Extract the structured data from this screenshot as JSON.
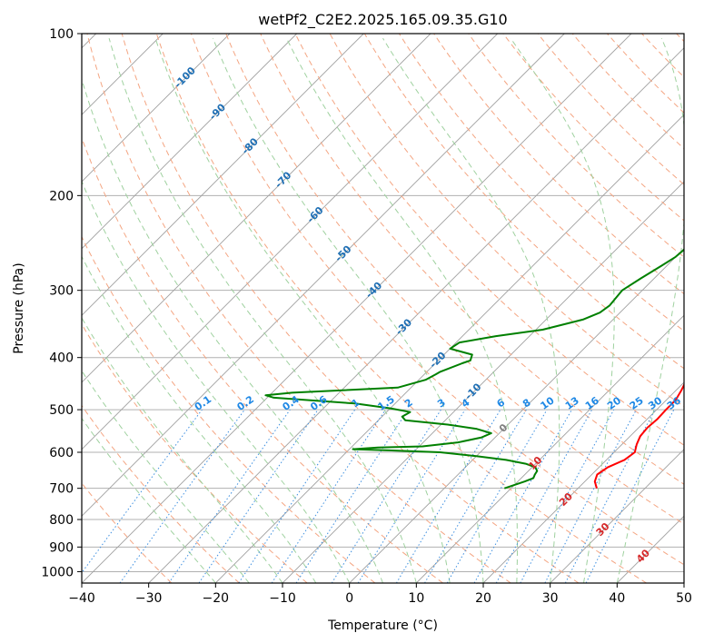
{
  "chart_data": {
    "type": "line",
    "title": "wetPf2_C2E2.2025.165.09.35.G10",
    "xlabel": "Temperature (°C)",
    "ylabel": "Pressure (hPa)",
    "xlim": [
      -40,
      50
    ],
    "ylim": [
      1050,
      100
    ],
    "y_scale": "log",
    "grid": true,
    "x_ticks": [
      -40,
      -30,
      -20,
      -10,
      0,
      10,
      20,
      30,
      40,
      50
    ],
    "y_ticks": [
      100,
      200,
      300,
      400,
      500,
      600,
      700,
      800,
      900,
      1000
    ],
    "background_lines": {
      "isotherm_color": "#a0a0a0",
      "dry_adiabat_color": "#f4a582",
      "moist_adiabat_color": "#9fd19f",
      "mixing_ratio_color": "#3d8fe0",
      "mixing_ratio_labels": [
        "0.1",
        "0.2",
        "0.4",
        "0.6",
        "1",
        "1.5",
        "2",
        "3",
        "4",
        "6",
        "8",
        "10",
        "13",
        "16",
        "20",
        "25",
        "30",
        "36"
      ],
      "isotherm_labels_upper": [
        "-100",
        "-90",
        "-80",
        "-70",
        "-60",
        "-50",
        "-40",
        "-30",
        "-20",
        "-10"
      ],
      "isotherm_labels_lower": [
        "0",
        "10",
        "20",
        "30",
        "40"
      ]
    },
    "series": [
      {
        "color": "#ff0000",
        "points": [
          [
            700,
            22.8
          ],
          [
            680,
            21.5
          ],
          [
            660,
            20.8
          ],
          [
            640,
            21.3
          ],
          [
            620,
            22.7
          ],
          [
            600,
            23.1
          ],
          [
            580,
            22.2
          ],
          [
            560,
            21.5
          ],
          [
            540,
            21.3
          ],
          [
            520,
            21.5
          ],
          [
            500,
            21.4
          ],
          [
            480,
            21.4
          ],
          [
            460,
            20.8
          ],
          [
            440,
            20.0
          ],
          [
            420,
            19.0
          ],
          [
            400,
            17.6
          ],
          [
            380,
            16.0
          ],
          [
            360,
            14.4
          ],
          [
            340,
            12.6
          ],
          [
            320,
            10.8
          ],
          [
            300,
            8.8
          ],
          [
            280,
            6.8
          ],
          [
            260,
            4.8
          ],
          [
            240,
            3.0
          ],
          [
            220,
            0.8
          ],
          [
            200,
            -1.8
          ],
          [
            180,
            -4.0
          ],
          [
            170,
            -5.6
          ],
          [
            160,
            -7.3
          ],
          [
            150,
            -8.9
          ],
          [
            140,
            -10.7
          ],
          [
            130,
            -12.7
          ],
          [
            120,
            -14.9
          ],
          [
            110,
            -17.2
          ],
          [
            103,
            -19.0
          ],
          [
            100,
            -19.8
          ]
        ]
      },
      {
        "color": "#008000",
        "points": [
          [
            700,
            9.0
          ],
          [
            680,
            11.0
          ],
          [
            670,
            11.8
          ],
          [
            660,
            11.5
          ],
          [
            650,
            11.3
          ],
          [
            640,
            10.5
          ],
          [
            630,
            8.5
          ],
          [
            620,
            5.0
          ],
          [
            610,
            0.0
          ],
          [
            600,
            -6.0
          ],
          [
            595,
            -14.0
          ],
          [
            592,
            -19.5
          ],
          [
            588,
            -16.0
          ],
          [
            585,
            -9.5
          ],
          [
            575,
            -4.8
          ],
          [
            563,
            -2.0
          ],
          [
            553,
            -1.2
          ],
          [
            543,
            -4.0
          ],
          [
            533,
            -9.0
          ],
          [
            523,
            -16.0
          ],
          [
            515,
            -17.0
          ],
          [
            505,
            -16.5
          ],
          [
            497,
            -20.0
          ],
          [
            487,
            -26.0
          ],
          [
            475,
            -39.0
          ],
          [
            470,
            -40.6
          ],
          [
            465,
            -37.0
          ],
          [
            455,
            -22.0
          ],
          [
            440,
            -19.0
          ],
          [
            430,
            -18.3
          ],
          [
            425,
            -18.0
          ],
          [
            410,
            -16.0
          ],
          [
            405,
            -15.2
          ],
          [
            395,
            -15.8
          ],
          [
            385,
            -20.0
          ],
          [
            375,
            -19.5
          ],
          [
            365,
            -15.0
          ],
          [
            355,
            -9.0
          ],
          [
            340,
            -4.5
          ],
          [
            330,
            -3.0
          ],
          [
            320,
            -2.6
          ],
          [
            300,
            -3.0
          ],
          [
            285,
            -2.0
          ],
          [
            270,
            -0.8
          ],
          [
            260,
            0.0
          ],
          [
            250,
            0.2
          ],
          [
            240,
            -0.2
          ],
          [
            230,
            0.2
          ],
          [
            220,
            0.6
          ],
          [
            210,
            1.0
          ],
          [
            200,
            1.1
          ],
          [
            185,
            0.7
          ],
          [
            170,
            0.5
          ],
          [
            160,
            0.5
          ],
          [
            150,
            -0.2
          ],
          [
            140,
            -1.2
          ],
          [
            130,
            -2.2
          ],
          [
            120,
            -3.0
          ],
          [
            115,
            -3.4
          ],
          [
            108,
            -2.4
          ],
          [
            103,
            -1.2
          ],
          [
            100,
            0.6
          ]
        ]
      }
    ]
  }
}
